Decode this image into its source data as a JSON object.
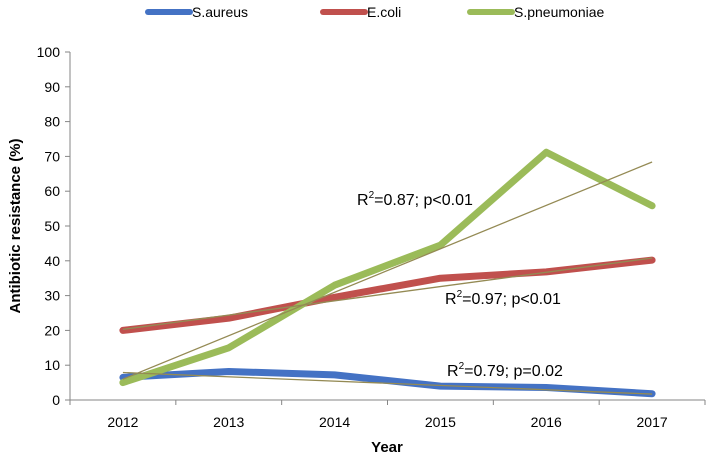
{
  "chart_data": {
    "type": "line",
    "title": "",
    "xlabel": "Year",
    "ylabel": "Antibiotic resistance (%)",
    "categories": [
      "2012",
      "2013",
      "2014",
      "2015",
      "2016",
      "2017"
    ],
    "ylim": [
      0,
      100
    ],
    "yticks": [
      "0",
      "10",
      "20",
      "30",
      "40",
      "50",
      "60",
      "70",
      "80",
      "90",
      "100"
    ],
    "grid": false,
    "legend_position": "top",
    "series": [
      {
        "name": "S.aureus",
        "color": "#4472C4",
        "values": [
          6.5,
          8.2,
          7.2,
          4.0,
          3.6,
          1.8
        ],
        "trendline": {
          "start": 7.9,
          "end": 1.7
        },
        "annotation": {
          "r_prefix": "R",
          "r_exp": "2",
          "text": "=0.79; p=0.02"
        }
      },
      {
        "name": "E.coli",
        "color": "#C0504D",
        "values": [
          20.0,
          23.5,
          29.5,
          35.0,
          36.8,
          40.2
        ],
        "trendline": {
          "start": 20.3,
          "end": 40.8
        },
        "annotation": {
          "r_prefix": "R",
          "r_exp": "2",
          "text": "=0.97; p<0.01"
        }
      },
      {
        "name": "S.pneumoniae",
        "color": "#9BBB59",
        "values": [
          5.0,
          15.0,
          33.0,
          44.5,
          71.2,
          55.8
        ],
        "trendline": {
          "start": 6.0,
          "end": 68.4
        },
        "annotation": {
          "r_prefix": "R",
          "r_exp": "2",
          "text": "=0.87; p<0.01"
        }
      }
    ],
    "trendline_color": "#948A54"
  }
}
